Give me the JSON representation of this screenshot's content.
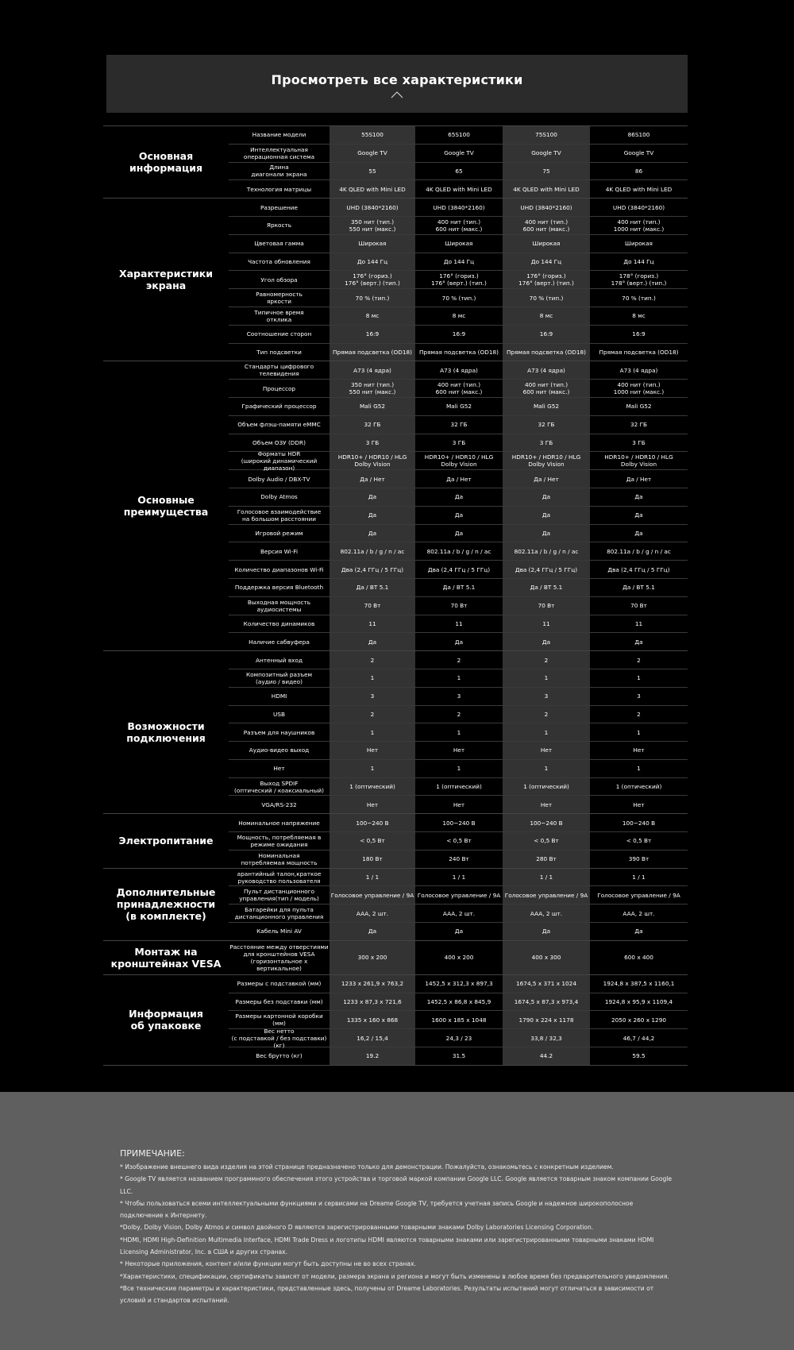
{
  "header": {
    "title": "Просмотреть все характеристики",
    "toggle_icon": "chevron-up-icon"
  },
  "colors": {
    "background": "#000000",
    "header_bg": "#2b2b2b",
    "highlight_col": "#333333",
    "footer_bg": "#5f5f5f"
  },
  "sections": [
    {
      "title": "Основная\nинформация",
      "rows": [
        {
          "label": "Название модели",
          "values": [
            "55S100",
            "65S100",
            "75S100",
            "86S100"
          ]
        },
        {
          "label": "Интеллектуальная\nоперационная система",
          "values": [
            "Google TV",
            "Google TV",
            "Google TV",
            "Google TV"
          ]
        },
        {
          "label": "Длина\nдиагонали экрана",
          "values": [
            "55",
            "65",
            "75",
            "86"
          ]
        },
        {
          "label": "Технология матрицы",
          "values": [
            "4K QLED with Mini LED",
            "4K QLED with Mini LED",
            "4K QLED with Mini LED",
            "4K QLED with Mini LED"
          ]
        }
      ]
    },
    {
      "title": "Характеристики\nэкрана",
      "rows": [
        {
          "label": "Разрешение",
          "values": [
            "UHD (3840*2160)",
            "UHD (3840*2160)",
            "UHD (3840*2160)",
            "UHD (3840*2160)"
          ]
        },
        {
          "label": "Яркость",
          "values": [
            "350 нит (тип.)\n550 нит (макс.)",
            "400 нит (тип.)\n600 нит (макс.)",
            "400 нит (тип.)\n600 нит (макс.)",
            "400 нит (тип.)\n1000 нит (макс.)"
          ]
        },
        {
          "label": "Цветовая гамма",
          "values": [
            "Широкая",
            "Широкая",
            "Широкая",
            "Широкая"
          ]
        },
        {
          "label": "Частота обновления",
          "values": [
            "До 144 Гц",
            "До 144 Гц",
            "До 144 Гц",
            "До 144 Гц"
          ]
        },
        {
          "label": "Угол обзора",
          "values": [
            "176° (гориз.)\n176° (верт.) (тип.)",
            "176° (гориз.)\n176° (верт.) (тип.)",
            "176° (гориз.)\n176° (верт.) (тип.)",
            "178° (гориз.)\n178° (верт.) (тип.)"
          ]
        },
        {
          "label": "Равномерность\nяркости",
          "values": [
            "70 % (тип.)",
            "70 % (тип.)",
            "70 % (тип.)",
            "70 % (тип.)"
          ]
        },
        {
          "label": "Типичное время\nотклика",
          "values": [
            "8 мс",
            "8 мс",
            "8 мс",
            "8 мс"
          ]
        },
        {
          "label": "Соотношение сторон",
          "values": [
            "16:9",
            "16:9",
            "16:9",
            "16:9"
          ]
        },
        {
          "label": "Тип подсветки",
          "values": [
            "Прямая подсветка (OD18)",
            "Прямая подсветка (OD18)",
            "Прямая подсветка (OD18)",
            "Прямая подсветка (OD18)"
          ]
        }
      ]
    },
    {
      "title": "Основные\nпреимущества",
      "rows": [
        {
          "label": "Стандарты цифрового\nтелевидения",
          "values": [
            "A73 (4 ядра)",
            "A73 (4 ядра)",
            "A73 (4 ядра)",
            "A73 (4 ядра)"
          ]
        },
        {
          "label": "Процессор",
          "values": [
            "350 нит (тип.)\n550 нит (макс.)",
            "400 нит (тип.)\n600 нит (макс.)",
            "400 нит (тип.)\n600 нит (макс.)",
            "400 нит (тип.)\n1000 нит (макс.)"
          ]
        },
        {
          "label": "Графический процессор",
          "values": [
            "Mali G52",
            "Mali G52",
            "Mali G52",
            "Mali G52"
          ]
        },
        {
          "label": "Объем флэш-памяти eMMC",
          "values": [
            "32 ГБ",
            "32 ГБ",
            "32 ГБ",
            "32 ГБ"
          ]
        },
        {
          "label": "Объем ОЗУ (DDR)",
          "values": [
            "3 ГБ",
            "3 ГБ",
            "3 ГБ",
            "3 ГБ"
          ]
        },
        {
          "label": "Форматы HDR\n(широкий динамический диапазон)",
          "values": [
            "HDR10+ / HDR10 / HLG\nDolby Vision",
            "HDR10+ / HDR10 / HLG\nDolby Vision",
            "HDR10+ / HDR10 / HLG\nDolby Vision",
            "HDR10+ / HDR10 / HLG\nDolby Vision"
          ]
        },
        {
          "label": "Dolby Audio / DBX-TV",
          "values": [
            "Да / Нет",
            "Да / Нет",
            "Да / Нет",
            "Да / Нет"
          ]
        },
        {
          "label": "Dolby Atmos",
          "values": [
            "Да",
            "Да",
            "Да",
            "Да"
          ]
        },
        {
          "label": "Голосовое взаимодействие\nна большом расстоянии",
          "values": [
            "Да",
            "Да",
            "Да",
            "Да"
          ]
        },
        {
          "label": "Игровой режим",
          "values": [
            "Да",
            "Да",
            "Да",
            "Да"
          ]
        },
        {
          "label": "Версия Wi-Fi",
          "values": [
            "802.11a / b / g / n / ac",
            "802.11a / b / g / n / ac",
            "802.11a / b / g / n / ac",
            "802.11a / b / g / n / ac"
          ]
        },
        {
          "label": "Количество диапазонов Wi-Fi",
          "values": [
            "Два (2,4 ГГц / 5 ГГц)",
            "Два (2,4 ГГц / 5 ГГц)",
            "Два (2,4 ГГц / 5 ГГц)",
            "Два (2,4 ГГц / 5 ГГц)"
          ]
        },
        {
          "label": "Поддержка версия Bluetooth",
          "values": [
            "Да / BT 5.1",
            "Да / BT 5.1",
            "Да / BT 5.1",
            "Да / BT 5.1"
          ]
        },
        {
          "label": "Выходная мощность\nаудиосистемы",
          "values": [
            "70 Вт",
            "70 Вт",
            "70 Вт",
            "70 Вт"
          ]
        },
        {
          "label": "Количество динамиков",
          "values": [
            "11",
            "11",
            "11",
            "11"
          ]
        },
        {
          "label": "Наличие сабвуфера",
          "values": [
            "Да",
            "Да",
            "Да",
            "Да"
          ]
        }
      ]
    },
    {
      "title": "Возможности\nподключения",
      "rows": [
        {
          "label": "Антенный вход",
          "values": [
            "2",
            "2",
            "2",
            "2"
          ]
        },
        {
          "label": "Композитный разъем\n(аудио / видео)",
          "values": [
            "1",
            "1",
            "1",
            "1"
          ]
        },
        {
          "label": "HDMI",
          "values": [
            "3",
            "3",
            "3",
            "3"
          ]
        },
        {
          "label": "USB",
          "values": [
            "2",
            "2",
            "2",
            "2"
          ]
        },
        {
          "label": "Разъем для наушников",
          "values": [
            "1",
            "1",
            "1",
            "1"
          ]
        },
        {
          "label": "Аудио-видео выход",
          "values": [
            "Нет",
            "Нет",
            "Нет",
            "Нет"
          ]
        },
        {
          "label": "Нет",
          "values": [
            "1",
            "1",
            "1",
            "1"
          ]
        },
        {
          "label": "Выход SPDIF\n(оптический / коаксиальный)",
          "values": [
            "1 (оптический)",
            "1 (оптический)",
            "1 (оптический)",
            "1 (оптический)"
          ]
        },
        {
          "label": "VGA/RS-232",
          "values": [
            "Нет",
            "Нет",
            "Нет",
            "Нет"
          ]
        }
      ]
    },
    {
      "title": "Электропитание",
      "rows": [
        {
          "label": "Номинальное напряжение",
          "values": [
            "100~240 В",
            "100~240 В",
            "100~240 В",
            "100~240 В"
          ]
        },
        {
          "label": "Мощность, потребляемая в\nрежиме ожидания",
          "values": [
            "< 0,5 Вт",
            "< 0,5 Вт",
            "< 0,5 Вт",
            "< 0,5 Вт"
          ]
        },
        {
          "label": "Номинальная\nпотребляемая мощность",
          "values": [
            "180 Вт",
            "240 Вт",
            "280 Вт",
            "390 Вт"
          ]
        }
      ]
    },
    {
      "title": "Дополнительные\nпринадлежности\n(в комплекте)",
      "rows": [
        {
          "label": "арантийный талон,краткое\nруководство пользователя",
          "values": [
            "1 / 1",
            "1 / 1",
            "1 / 1",
            "1 / 1"
          ]
        },
        {
          "label": "Пульт дистанционного\nуправления(тип / модель)",
          "values": [
            "Голосовое управление / 9A",
            "Голосовое управление / 9A",
            "Голосовое управление / 9A",
            "Голосовое управление / 9A"
          ]
        },
        {
          "label": "Батарейки для пульта\nдистанционного управления",
          "values": [
            "AAA, 2 шт.",
            "AAA, 2 шт.",
            "AAA, 2 шт.",
            "AAA, 2 шт."
          ]
        },
        {
          "label": "Кабель Mini AV",
          "values": [
            "Да",
            "Да",
            "Да",
            "Да"
          ]
        }
      ]
    },
    {
      "title": "Монтаж на\nкронштейнах VESA",
      "rows": [
        {
          "label": "Расстояние между отверстиями\nдля кронштейнов VESA\n(горизонтальное x вертикальное)",
          "values": [
            "300 x 200",
            "400 x 200",
            "400 x 300",
            "600 x 400"
          ],
          "tall": true
        }
      ]
    },
    {
      "title": "Информация\nоб упаковке",
      "rows": [
        {
          "label": "Размеры с подставкой (мм)",
          "values": [
            "1233 x 261,9 x 763,2",
            "1452,5 x 312,3 x 897,3",
            "1674,5 x 371 x 1024",
            "1924,8 x 387,5 x 1160,1"
          ]
        },
        {
          "label": "Размеры без подставки (мм)",
          "values": [
            "1233 x 87,3 x 721,6",
            "1452,5 x 86,8 x 845,9",
            "1674,5 x 87,3 x 973,4",
            "1924,8 x 95,9 x 1109,4"
          ]
        },
        {
          "label": "Размеры картонной коробки (мм)",
          "values": [
            "1335 x 160 x 868",
            "1600 x 185 x 1048",
            "1790 x 224 x 1178",
            "2050 x 260 x 1290"
          ]
        },
        {
          "label": "Вес нетто\n(с подставкой / без подставки) (кг)",
          "values": [
            "16,2 / 15,4",
            "24,3 / 23",
            "33,8 / 32,3",
            "46,7 / 44,2"
          ]
        },
        {
          "label": "Вес брутто (кг)",
          "values": [
            "19.2",
            "31.5",
            "44.2",
            "59.5"
          ]
        }
      ]
    }
  ],
  "notes": {
    "title": "ПРИМЕЧАНИЕ:",
    "items": [
      "* Изображение внешнего вида изделия на этой странице предназначено только для демонстрации. Пожалуйста, ознакомьтесь с конкретным изделием.",
      "* Google TV является названием программного обеспечения этого устройства и торговой маркой компании Google LLC. Google является товарным знаком компании Google LLC.",
      "* Чтобы пользоваться всеми интеллектуальными функциями и сервисами на Dreame Google TV, требуется учетная запись Google и надежное широкополосное подключение к Интернету.",
      "*Dolby, Dolby Vision, Dolby Atmos и символ двойного D являются зарегистрированными товарными знаками Dolby Laboratories Licensing Corporation.",
      "*HDMI, HDMI High-Definition Multimedia Interface, HDMI Trade Dress и логотипы HDMI являются товарными знаками или зарегистрированными товарными знаками HDMI Licensing Administrator, Inc. в США и других странах.",
      "* Некоторые приложения, контент и/или функции могут быть доступны не во всех странах.",
      "*Характеристики, спецификации, сертификаты зависят от модели, размера экрана и региона и могут быть изменены в любое время без предварительного уведомления.",
      "*Все технические параметры и характеристики, представленные здесь, получены от Dreame Laboratories. Результаты испытаний могут отличаться в зависимости от условий и стандартов испытаний."
    ]
  }
}
